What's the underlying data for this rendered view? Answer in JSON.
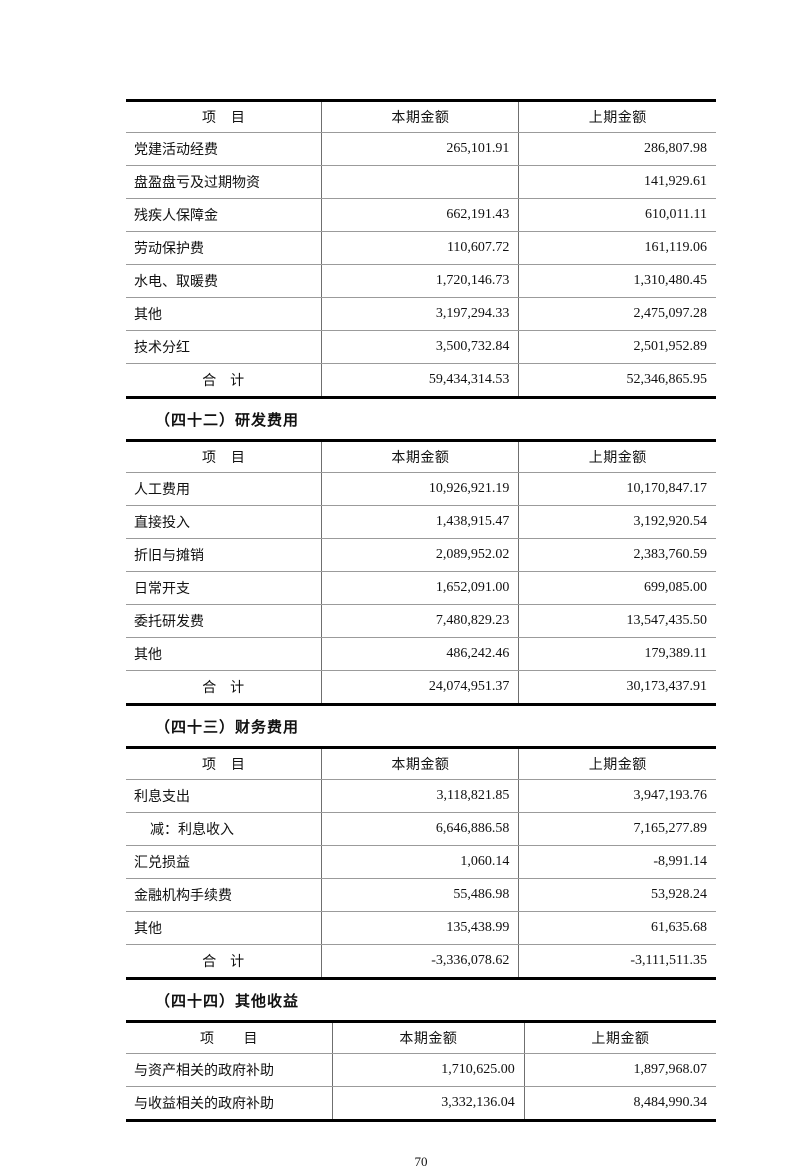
{
  "page": {
    "number": "70"
  },
  "sections": [
    {
      "heading": null,
      "columns": [
        "项　目",
        "本期金额",
        "上期金额"
      ],
      "rows": [
        {
          "item": "党建活动经费",
          "current": "265,101.91",
          "prior": "286,807.98"
        },
        {
          "item": "盘盈盘亏及过期物资",
          "current": "",
          "prior": "141,929.61"
        },
        {
          "item": "残疾人保障金",
          "current": "662,191.43",
          "prior": "610,011.11"
        },
        {
          "item": "劳动保护费",
          "current": "110,607.72",
          "prior": "161,119.06"
        },
        {
          "item": "水电、取暖费",
          "current": "1,720,146.73",
          "prior": "1,310,480.45"
        },
        {
          "item": "其他",
          "current": "3,197,294.33",
          "prior": "2,475,097.28"
        },
        {
          "item": "技术分红",
          "current": "3,500,732.84",
          "prior": "2,501,952.89"
        },
        {
          "item": "合　计",
          "total": true,
          "current": "59,434,314.53",
          "prior": "52,346,865.95"
        }
      ]
    },
    {
      "heading": "（四十二）研发费用",
      "columns": [
        "项　目",
        "本期金额",
        "上期金额"
      ],
      "rows": [
        {
          "item": "人工费用",
          "current": "10,926,921.19",
          "prior": "10,170,847.17"
        },
        {
          "item": "直接投入",
          "current": "1,438,915.47",
          "prior": "3,192,920.54"
        },
        {
          "item": "折旧与摊销",
          "current": "2,089,952.02",
          "prior": "2,383,760.59"
        },
        {
          "item": "日常开支",
          "current": "1,652,091.00",
          "prior": "699,085.00"
        },
        {
          "item": "委托研发费",
          "current": "7,480,829.23",
          "prior": "13,547,435.50"
        },
        {
          "item": "其他",
          "current": "486,242.46",
          "prior": "179,389.11"
        },
        {
          "item": "合　计",
          "total": true,
          "current": "24,074,951.37",
          "prior": "30,173,437.91"
        }
      ]
    },
    {
      "heading": "（四十三）财务费用",
      "columns": [
        "项　目",
        "本期金额",
        "上期金额"
      ],
      "rows": [
        {
          "item": "利息支出",
          "current": "3,118,821.85",
          "prior": "3,947,193.76"
        },
        {
          "item": "减：利息收入",
          "indent": true,
          "current": "6,646,886.58",
          "prior": "7,165,277.89"
        },
        {
          "item": "汇兑损益",
          "current": "1,060.14",
          "prior": "-8,991.14"
        },
        {
          "item": "金融机构手续费",
          "current": "55,486.98",
          "prior": "53,928.24"
        },
        {
          "item": "其他",
          "current": "135,438.99",
          "prior": "61,635.68"
        },
        {
          "item": "合　计",
          "total": true,
          "current": "-3,336,078.62",
          "prior": "-3,111,511.35"
        }
      ]
    },
    {
      "heading": "（四十四）其他收益",
      "wide_first": true,
      "columns": [
        "项　　目",
        "本期金额",
        "上期金额"
      ],
      "rows": [
        {
          "item": "与资产相关的政府补助",
          "current": "1,710,625.00",
          "prior": "1,897,968.07"
        },
        {
          "item": "与收益相关的政府补助",
          "current": "3,332,136.04",
          "prior": "8,484,990.34"
        }
      ]
    }
  ]
}
